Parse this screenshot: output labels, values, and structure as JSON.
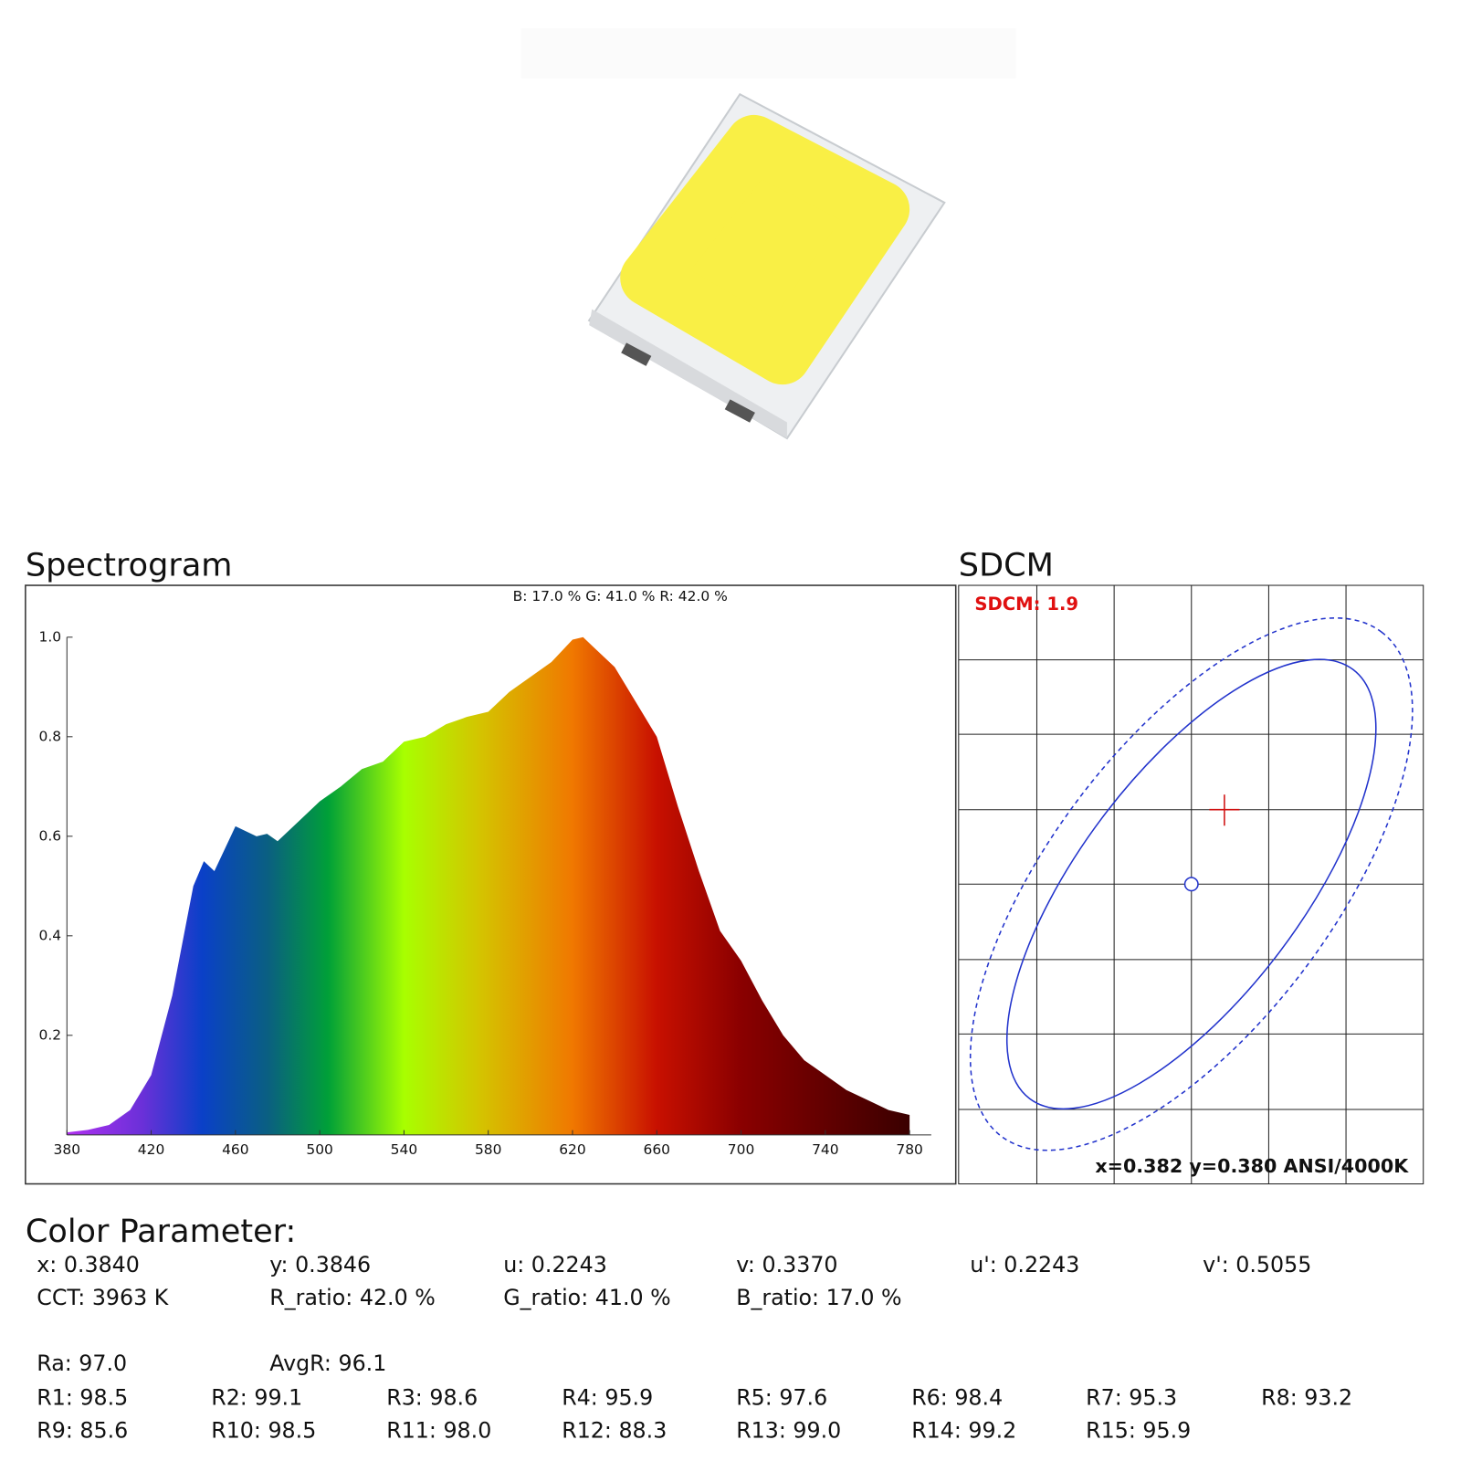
{
  "chart_data": {
    "type": "area",
    "title": "Spectrogram",
    "subtitle": "B: 17.0 %  G: 41.0 %  R: 42.0 %",
    "x": [
      380,
      390,
      400,
      410,
      420,
      430,
      440,
      445,
      450,
      460,
      470,
      475,
      480,
      490,
      500,
      510,
      520,
      530,
      540,
      550,
      560,
      570,
      580,
      590,
      600,
      610,
      620,
      625,
      630,
      640,
      650,
      660,
      670,
      680,
      690,
      700,
      710,
      720,
      730,
      740,
      750,
      760,
      770,
      780
    ],
    "values": [
      0.005,
      0.01,
      0.02,
      0.05,
      0.12,
      0.28,
      0.5,
      0.55,
      0.53,
      0.62,
      0.6,
      0.605,
      0.59,
      0.63,
      0.67,
      0.7,
      0.735,
      0.75,
      0.79,
      0.8,
      0.825,
      0.84,
      0.85,
      0.89,
      0.92,
      0.95,
      0.995,
      1.0,
      0.98,
      0.94,
      0.87,
      0.8,
      0.66,
      0.53,
      0.41,
      0.35,
      0.27,
      0.2,
      0.15,
      0.12,
      0.09,
      0.07,
      0.05,
      0.04
    ],
    "xlim": [
      380,
      780
    ],
    "xticks": [
      380,
      420,
      460,
      500,
      540,
      580,
      620,
      660,
      700,
      740,
      780
    ],
    "ylim": [
      0,
      1
    ],
    "yticks": [
      0.2,
      0.4,
      0.6,
      0.8,
      {
        "value": 1,
        "label": "1.0"
      }
    ]
  },
  "sdcm": {
    "title": "SDCM",
    "value_label": "SDCM: 1.9",
    "coordinates": "x=0.382 y=0.380 ANSI/4000K"
  },
  "color_parameter": {
    "title": "Color Parameter:",
    "rows": [
      [
        "x: 0.3840",
        "y: 0.3846",
        "u: 0.2243",
        "v: 0.3370",
        "u': 0.2243",
        "v': 0.5055"
      ],
      [
        "CCT: 3963 K",
        "R_ratio: 42.0 %",
        "G_ratio: 41.0 %",
        "B_ratio: 17.0 %"
      ],
      [
        "Ra: 97.0",
        "AvgR: 96.1"
      ],
      [
        "R1: 98.5",
        "R2: 99.1",
        "R3: 98.6",
        "R4: 95.9",
        "R5: 97.6",
        "R6: 98.4",
        "R7: 95.3",
        "R8: 93.2"
      ],
      [
        "R9: 85.6",
        "R10: 98.5",
        "R11: 98.0",
        "R12: 88.3",
        "R13: 99.0",
        "R14: 99.2",
        "R15: 95.9"
      ]
    ]
  }
}
